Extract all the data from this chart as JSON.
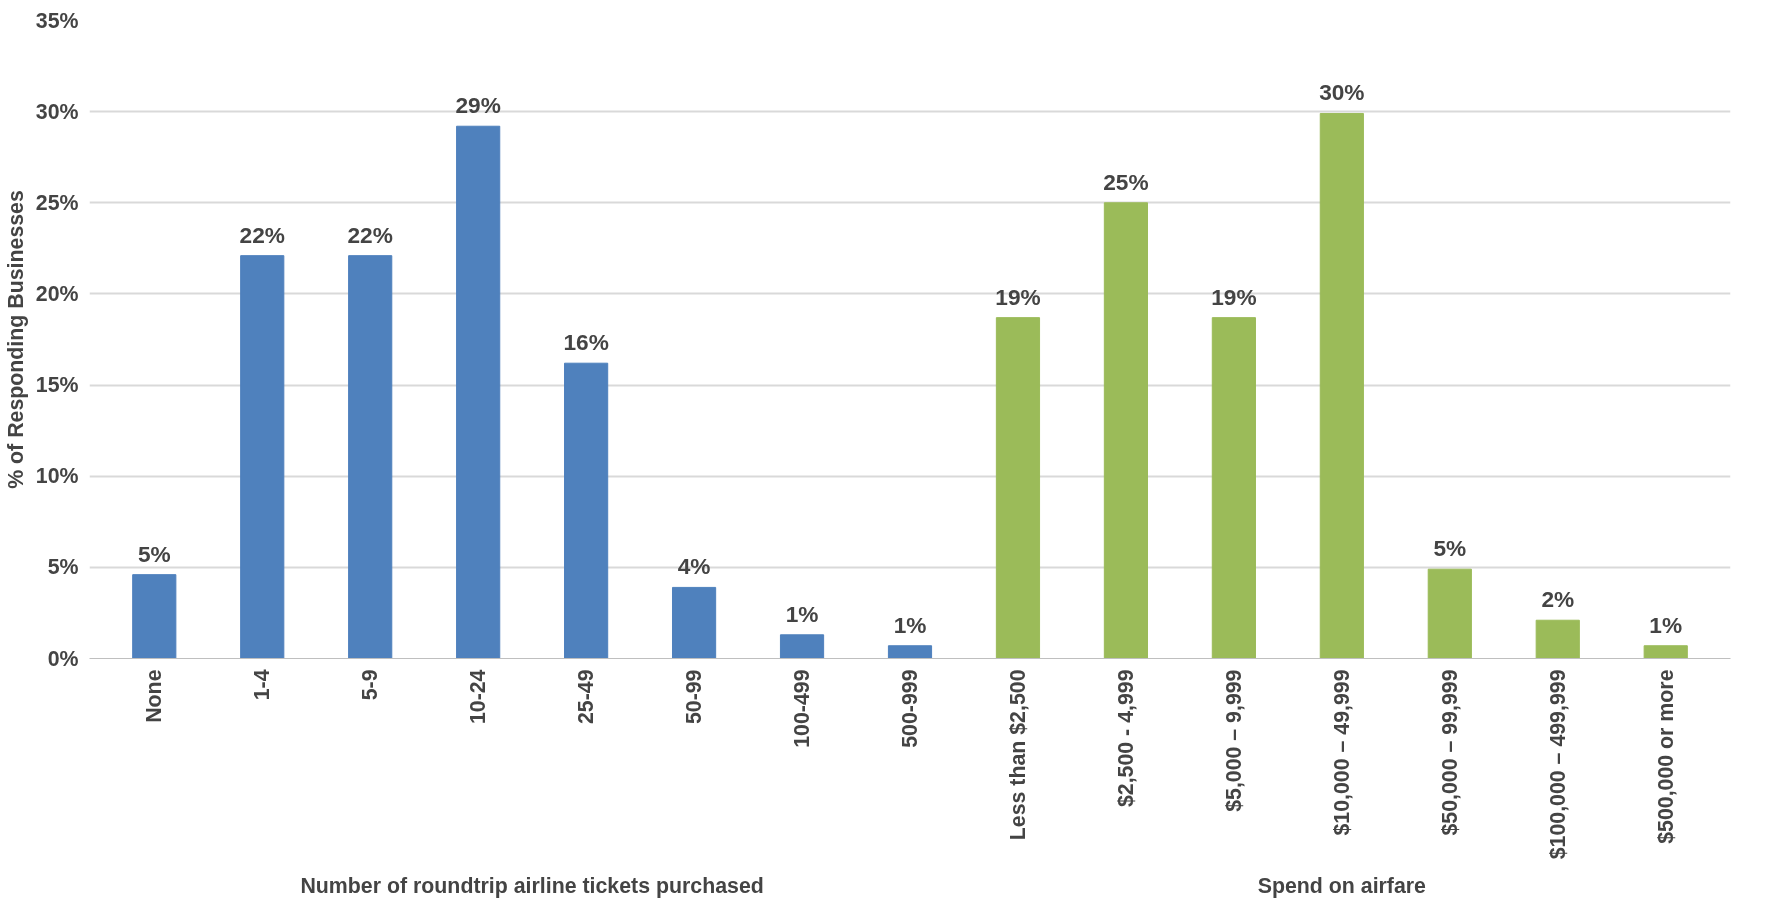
{
  "chart_data": {
    "type": "bar",
    "ylabel": "% of Responding Businesses",
    "categories": [
      "None",
      "1-4",
      "5-9",
      "10-24",
      "25-49",
      "50-99",
      "100-499",
      "500-999",
      "Less than $2,500",
      "$2,500 - 4,999",
      "$5,000 – 9,999",
      "$10,000 – 49,999",
      "$50,000 – 99,999",
      "$100,000 – 499,999",
      "$500,000 or more"
    ],
    "series": [
      {
        "color": "#4f81bd",
        "values": [
          4.6,
          22.1,
          22.1,
          29.2,
          16.2,
          3.9,
          1.3,
          0.7,
          null,
          null,
          null,
          null,
          null,
          null,
          null
        ],
        "value_labels": [
          "5%",
          "22%",
          "22%",
          "29%",
          "16%",
          "4%",
          "1%",
          "1%",
          null,
          null,
          null,
          null,
          null,
          null,
          null
        ]
      },
      {
        "color": "#9bbb59",
        "values": [
          null,
          null,
          null,
          null,
          null,
          null,
          null,
          null,
          18.7,
          25.0,
          18.7,
          29.9,
          4.9,
          2.1,
          0.7
        ],
        "value_labels": [
          null,
          null,
          null,
          null,
          null,
          null,
          null,
          null,
          "19%",
          "25%",
          "19%",
          "30%",
          "5%",
          "2%",
          "1%"
        ]
      }
    ],
    "annotations": [
      "Number of roundtrip airline tickets purchased",
      "Spend on airfare"
    ],
    "ylim": [
      0,
      35
    ],
    "yticks": [
      {
        "value": 0,
        "label": "0%"
      },
      {
        "value": 5,
        "label": "5%"
      },
      {
        "value": 10,
        "label": "10%"
      },
      {
        "value": 15,
        "label": "15%"
      },
      {
        "value": 20,
        "label": "20%"
      },
      {
        "value": 25,
        "label": "25%"
      },
      {
        "value": 30,
        "label": "30%"
      },
      {
        "value": 35,
        "label": "35%"
      }
    ],
    "grid": "y"
  }
}
